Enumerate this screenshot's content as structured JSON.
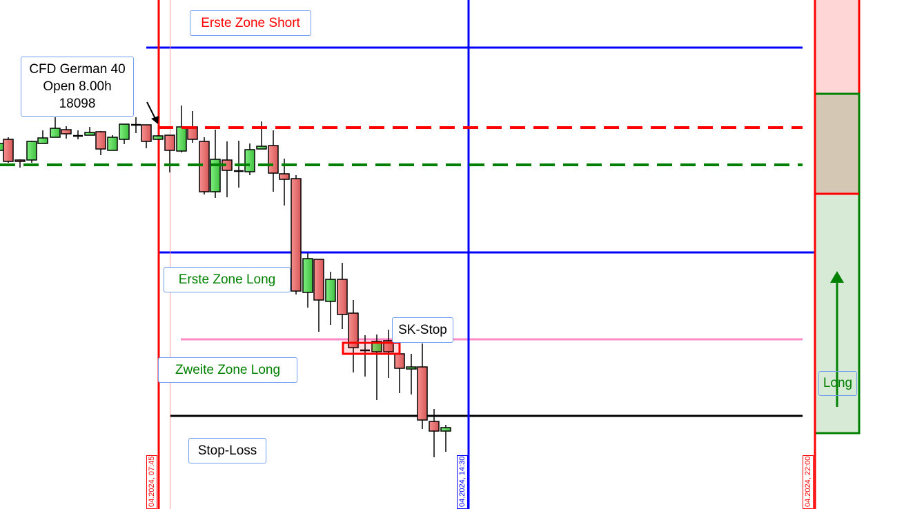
{
  "chart_data": {
    "type": "candlestick",
    "title": "",
    "instrument_label": {
      "line1": "CFD German 40",
      "line2": "Open 8.00h",
      "line3": "18098"
    },
    "annotations": {
      "short_zone_1": "Erste Zone Short",
      "long_zone_1": "Erste Zone Long",
      "sk_stop": "SK-Stop",
      "long_zone_2": "Zweite Zone Long",
      "stop_loss": "Stop-Loss",
      "direction": "Long"
    },
    "vertical_markers": [
      {
        "label": "04.2024, 07:45",
        "color": "#ff0000"
      },
      {
        "label": "04.2024, 14:30",
        "color": "#0000ff"
      },
      {
        "label": "04.2024, 22:00",
        "color": "#ff0000"
      }
    ],
    "open_price": 18098,
    "direction_arrow": "up",
    "grid": false
  },
  "colors": {
    "bull": "#5fdc5f",
    "bear": "#e86a6a",
    "zone_blue": "#0000ff",
    "open_red": "#ff0000",
    "open_green": "#008000",
    "sk_stop_pink": "#ff88c8",
    "stop_loss": "#000000",
    "panel_short": "#ffd6d6",
    "panel_neutral": "#d4c8b4",
    "panel_long": "#d6ead6"
  }
}
